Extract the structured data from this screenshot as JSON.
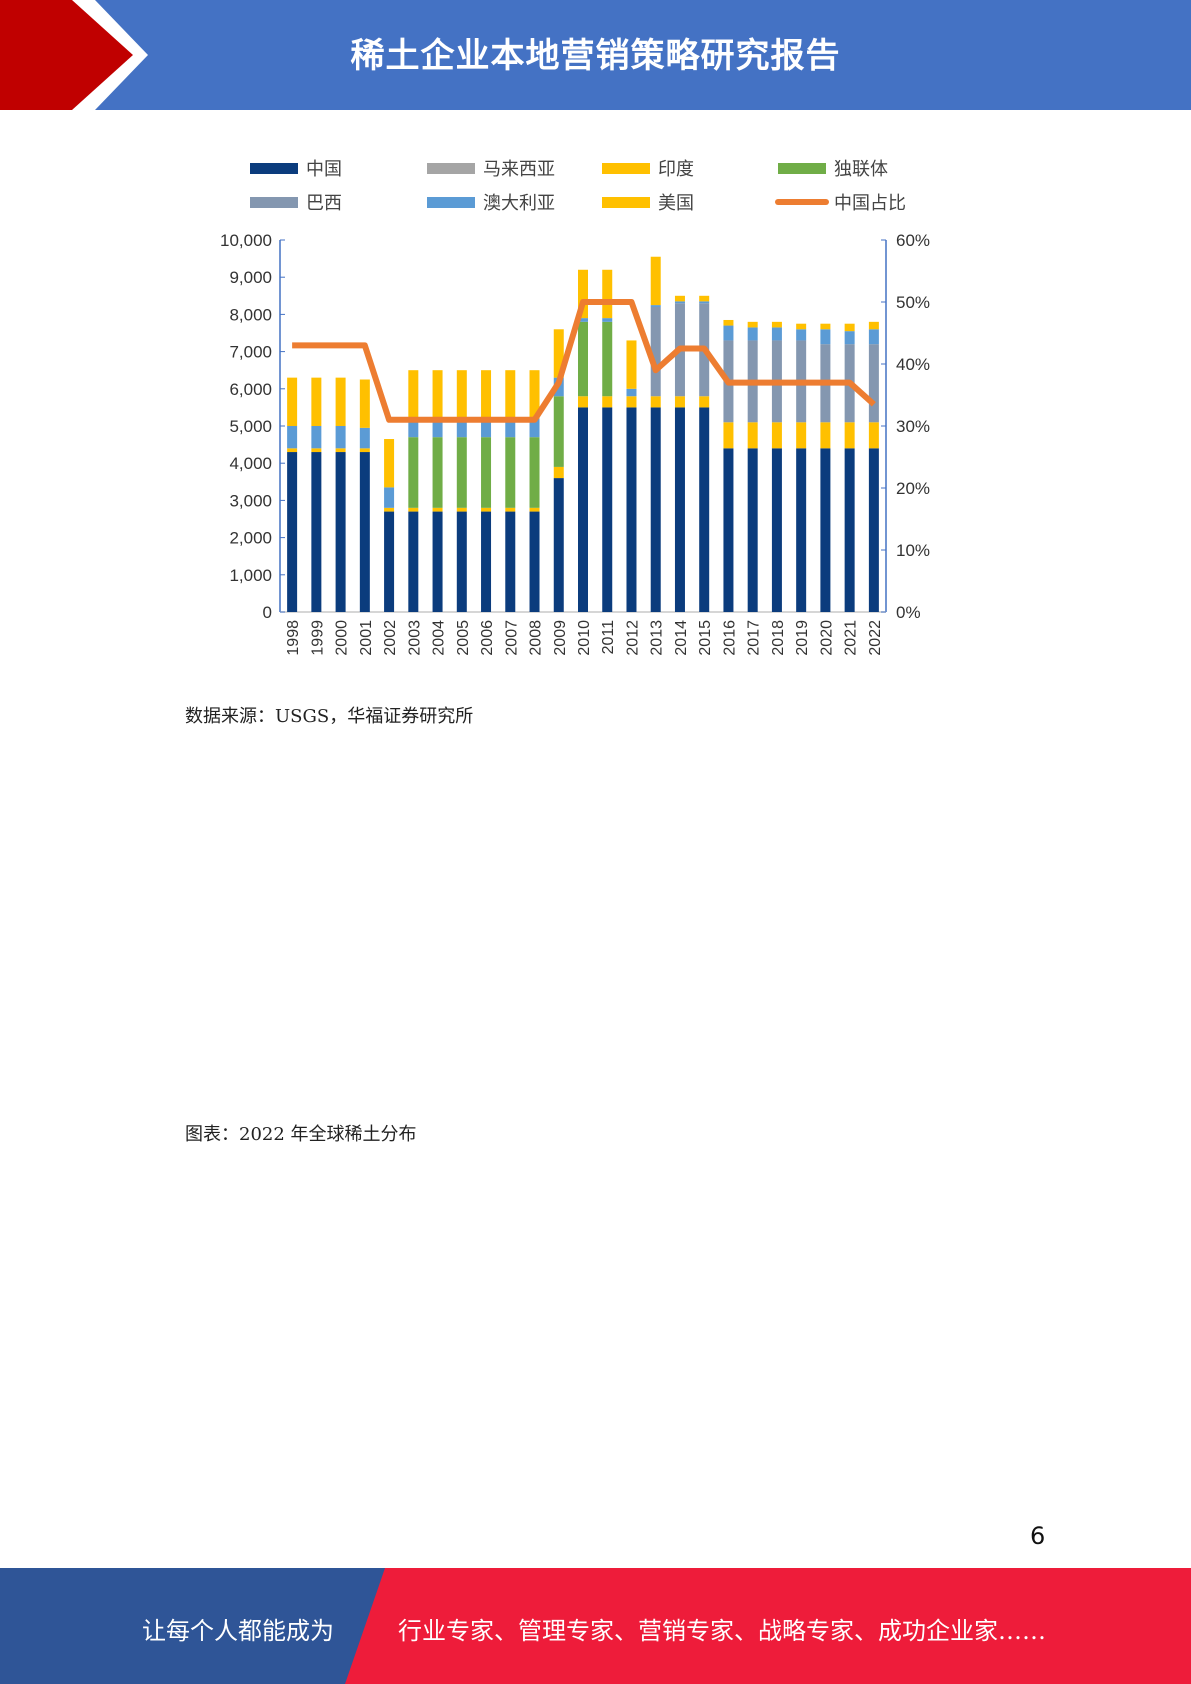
{
  "header": {
    "title": "稀土企业本地营销策略研究报告"
  },
  "chart_data": {
    "type": "bar",
    "categories": [
      "1998",
      "1999",
      "2000",
      "2001",
      "2002",
      "2003",
      "2004",
      "2005",
      "2006",
      "2007",
      "2008",
      "2009",
      "2010",
      "2011",
      "2012",
      "2013",
      "2014",
      "2015",
      "2016",
      "2017",
      "2018",
      "2019",
      "2020",
      "2021",
      "2022"
    ],
    "stacked": true,
    "series": [
      {
        "name": "中国",
        "color": "#0b3c7d",
        "values": [
          4300,
          4300,
          4300,
          4300,
          2700,
          2700,
          2700,
          2700,
          2700,
          2700,
          2700,
          3600,
          5500,
          5500,
          5500,
          5500,
          5500,
          5500,
          4400,
          4400,
          4400,
          4400,
          4400,
          4400,
          4400
        ]
      },
      {
        "name": "马来西亚",
        "color": "#a5a5a5",
        "values": [
          0,
          0,
          0,
          0,
          0,
          0,
          0,
          0,
          0,
          0,
          0,
          0,
          0,
          0,
          0,
          0,
          0,
          0,
          0,
          0,
          0,
          0,
          0,
          0,
          0
        ]
      },
      {
        "name": "印度",
        "color": "#ffc000",
        "values": [
          100,
          100,
          100,
          100,
          100,
          100,
          100,
          100,
          100,
          100,
          100,
          300,
          300,
          300,
          300,
          300,
          300,
          300,
          700,
          700,
          700,
          700,
          700,
          700,
          700
        ]
      },
      {
        "name": "独联体",
        "color": "#70ad47",
        "values": [
          0,
          0,
          0,
          0,
          0,
          1900,
          1900,
          1900,
          1900,
          1900,
          1900,
          1900,
          2000,
          2000,
          0,
          0,
          0,
          0,
          0,
          0,
          0,
          0,
          0,
          0,
          0
        ]
      },
      {
        "name": "巴西",
        "color": "#8497b0",
        "values": [
          0,
          0,
          0,
          0,
          0,
          0,
          0,
          0,
          0,
          0,
          0,
          0,
          0,
          0,
          0,
          2400,
          2500,
          2500,
          2200,
          2200,
          2200,
          2200,
          2100,
          2100,
          2100
        ]
      },
      {
        "name": "澳大利亚",
        "color": "#5b9bd5",
        "values": [
          600,
          600,
          600,
          550,
          550,
          500,
          500,
          500,
          500,
          500,
          500,
          500,
          100,
          100,
          200,
          50,
          50,
          50,
          400,
          350,
          350,
          300,
          400,
          350,
          400
        ]
      },
      {
        "name": "美国",
        "color": "#ffc000",
        "values": [
          1300,
          1300,
          1300,
          1300,
          1300,
          1300,
          1300,
          1300,
          1300,
          1300,
          1300,
          1300,
          1300,
          1300,
          1300,
          1300,
          150,
          150,
          150,
          150,
          150,
          150,
          150,
          200,
          200
        ]
      }
    ],
    "line_series": {
      "name": "中国占比",
      "color": "#ed7d31",
      "axis": "right",
      "values": [
        0.43,
        0.43,
        0.43,
        0.43,
        0.31,
        0.31,
        0.31,
        0.31,
        0.31,
        0.31,
        0.31,
        0.37,
        0.5,
        0.5,
        0.5,
        0.39,
        0.425,
        0.425,
        0.37,
        0.37,
        0.37,
        0.37,
        0.37,
        0.37,
        0.335
      ]
    },
    "ylim": [
      0,
      10000
    ],
    "y_ticks": [
      "0",
      "1,000",
      "2,000",
      "3,000",
      "4,000",
      "5,000",
      "6,000",
      "7,000",
      "8,000",
      "9,000",
      "10,000"
    ],
    "y2lim": [
      0,
      0.6
    ],
    "y2_ticks": [
      "0%",
      "10%",
      "20%",
      "30%",
      "40%",
      "50%",
      "60%"
    ],
    "legend_position": "top",
    "grid": false
  },
  "captions": {
    "source": "数据来源：USGS，华福证券研究所",
    "figure2": "图表：2022 年全球稀土分布"
  },
  "page_number": "6",
  "footer": {
    "left": "让每个人都能成为",
    "right": "行业专家、管理专家、营销专家、战略专家、成功企业家……"
  },
  "colors": {
    "header_blue": "#4472c4",
    "accent_red": "#c00000",
    "footer_red": "#ee1c3a",
    "footer_blue": "#2f5597"
  }
}
